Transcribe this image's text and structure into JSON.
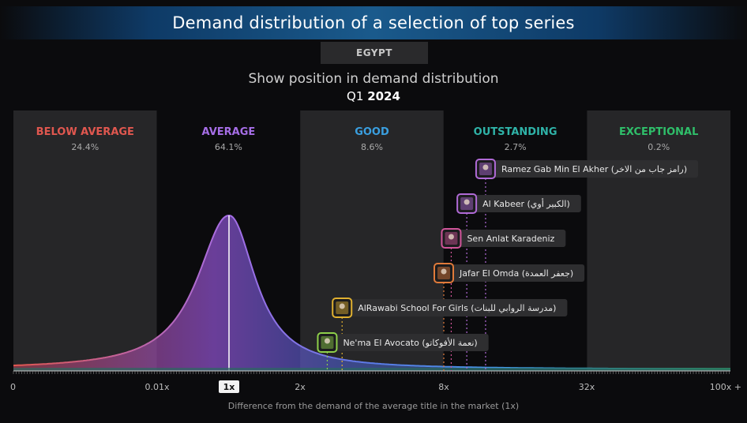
{
  "header": {
    "title": "Demand distribution of a selection of top series",
    "country": "EGYPT",
    "subtitle": "Show position in demand distribution",
    "period_quarter": "Q1",
    "period_year": "2024"
  },
  "chart_data": {
    "type": "area",
    "title": "Demand distribution of a selection of top series",
    "subtitle": "Show position in demand distribution",
    "xlabel": "Difference from the demand of the average title in the market (1x)",
    "x_scale": "log",
    "x_ticks": [
      {
        "value": 0,
        "label": "0"
      },
      {
        "value": 0.01,
        "label": "0.01x"
      },
      {
        "value": 1,
        "label": "1x",
        "highlight": true
      },
      {
        "value": 2,
        "label": "2x"
      },
      {
        "value": 8,
        "label": "8x"
      },
      {
        "value": 32,
        "label": "32x"
      },
      {
        "value": 100,
        "label": "100x +"
      }
    ],
    "bands": [
      {
        "name": "BELOW AVERAGE",
        "share": "24.4%",
        "color": "#e0574f"
      },
      {
        "name": "AVERAGE",
        "share": "64.1%",
        "color": "#a66ee6"
      },
      {
        "name": "GOOD",
        "share": "8.6%",
        "color": "#3a9fe0"
      },
      {
        "name": "OUTSTANDING",
        "share": "2.7%",
        "color": "#2fb3a8"
      },
      {
        "name": "EXCEPTIONAL",
        "share": "0.2%",
        "color": "#2fbf6a"
      }
    ],
    "shows": [
      {
        "label": "Ramez Gab Min El Akher (رامز جاب من الاخر)",
        "demand": 12,
        "color": "#b06ad6",
        "icon": "show-thumbnail-icon"
      },
      {
        "label": "Al Kabeer (الكبير أوي)",
        "demand": 10,
        "color": "#b06ad6",
        "icon": "show-thumbnail-icon"
      },
      {
        "label": "Sen Anlat Karadeniz",
        "demand": 8.6,
        "color": "#d0559a",
        "icon": "show-thumbnail-icon"
      },
      {
        "label": "Jafar El Omda (جعفر العمدة)",
        "demand": 8,
        "color": "#e07a3a",
        "icon": "show-thumbnail-icon"
      },
      {
        "label": "AlRawabi School For Girls (مدرسة الروابي للبنات)",
        "demand": 3,
        "color": "#e0b030",
        "icon": "show-thumbnail-icon"
      },
      {
        "label": "Ne'ma El Avocato (نعمة الأفوكاتو)",
        "demand": 2.6,
        "color": "#8ed04a",
        "icon": "show-thumbnail-icon"
      }
    ]
  }
}
